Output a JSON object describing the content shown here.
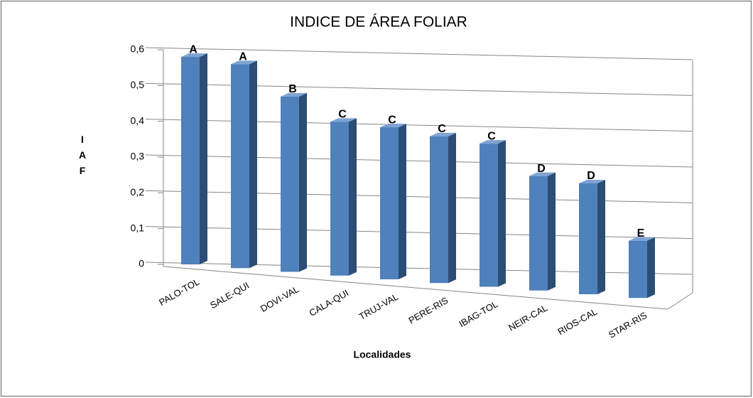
{
  "chart_data": {
    "type": "bar3d",
    "title": "INDICE DE ÁREA FOLIAR",
    "x_label": "Localidades",
    "y_label": "IAF",
    "categories": [
      "PALO-TOL",
      "SALE-QUI",
      "DOVI-VAL",
      "CALA-QUI",
      "TRUJ-VAL",
      "PERE-RIS",
      "IBAG-TOL",
      "NEIR-CAL",
      "RIOS-CAL",
      "STAR-RIS"
    ],
    "values": [
      0.58,
      0.57,
      0.49,
      0.43,
      0.425,
      0.41,
      0.4,
      0.32,
      0.31,
      0.16
    ],
    "letters": [
      "A",
      "A",
      "B",
      "C",
      "C",
      "C",
      "C",
      "D",
      "D",
      "E"
    ],
    "color": "#4f81bd",
    "ylim": [
      0,
      0.6
    ],
    "yticks": [
      0,
      {
        "value": 0.1,
        "label": "0,1"
      },
      {
        "value": 0.2,
        "label": "0,2"
      },
      {
        "value": 0.3,
        "label": "0,3"
      },
      {
        "value": 0.4,
        "label": "0,4"
      },
      {
        "value": 0.5,
        "label": "0,5"
      },
      {
        "value": 0.6,
        "label": "0,6"
      }
    ],
    "grid": true
  }
}
